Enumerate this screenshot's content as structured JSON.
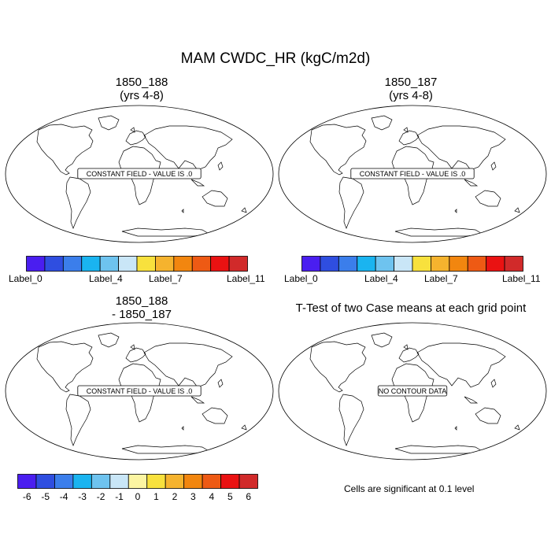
{
  "title": "MAM CWDC_HR (kgC/m2d)",
  "panels": [
    {
      "title_line1": "1850_188",
      "title_line2": "(yrs 4-8)",
      "message": "CONSTANT FIELD - VALUE IS .0"
    },
    {
      "title_line1": "1850_187",
      "title_line2": "(yrs 4-8)",
      "message": "CONSTANT FIELD - VALUE IS .0"
    },
    {
      "title_line1": "1850_188",
      "title_line2": "- 1850_187",
      "message": "CONSTANT FIELD - VALUE IS .0"
    },
    {
      "title_line1": "T-Test of two Case means at each grid point",
      "title_line2": "",
      "message": "NO CONTOUR DATA"
    }
  ],
  "colorbar_top": {
    "colors": [
      "#4a1ef0",
      "#2f4ee0",
      "#3b7eeb",
      "#1ab4f0",
      "#6ec3ef",
      "#c9e6f7",
      "#f8e13d",
      "#f5b32e",
      "#f2860f",
      "#ee5a14",
      "#ea1212",
      "#d12a2a"
    ],
    "labels": [
      "Label_0",
      "Label_4",
      "Label_7",
      "Label_11"
    ]
  },
  "colorbar_diff": {
    "colors": [
      "#4a1ef0",
      "#2f4ee0",
      "#3b7eeb",
      "#1ab4f0",
      "#6ec3ef",
      "#c9e6f7",
      "#fcf5a2",
      "#f8e13d",
      "#f5b32e",
      "#f2860f",
      "#ee5a14",
      "#ea1212",
      "#d12a2a"
    ],
    "labels": [
      "-6",
      "-5",
      "-4",
      "-3",
      "-2",
      "-1",
      "0",
      "1",
      "2",
      "3",
      "4",
      "5",
      "6"
    ]
  },
  "significance_note": "Cells are significant at 0.1 level"
}
